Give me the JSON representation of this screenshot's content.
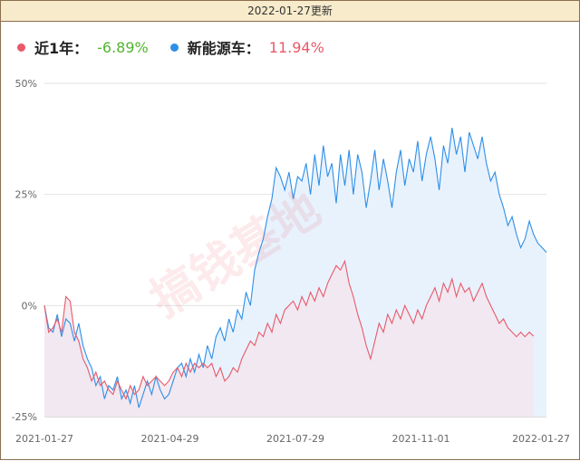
{
  "header": {
    "updated": "2022-01-27更新"
  },
  "legend": [
    {
      "name": "近1年：",
      "value": "-6.89%",
      "value_color": "#52b52f",
      "dot_color": "#e8596a"
    },
    {
      "name": "新能源车：",
      "value": "11.94%",
      "value_color": "#e8596a",
      "dot_color": "#2e8fe8"
    }
  ],
  "watermark": "搞钱基地",
  "chart_data": {
    "type": "area",
    "x_ticks": [
      "2021-01-27",
      "2021-04-29",
      "2021-07-29",
      "2021-11-01",
      "2022-01-27"
    ],
    "y_ticks": [
      "50%",
      "25%",
      "0%",
      "-25%"
    ],
    "ylim": [
      -25,
      50
    ],
    "grid": true,
    "series": [
      {
        "name": "新能源车",
        "color": "#2e8fe8",
        "fill": "#e8f2fd",
        "points": [
          [
            0,
            0
          ],
          [
            1,
            -5
          ],
          [
            2,
            -6
          ],
          [
            3,
            -2
          ],
          [
            4,
            -7
          ],
          [
            5,
            -3
          ],
          [
            6,
            -4
          ],
          [
            7,
            -8
          ],
          [
            8,
            -4
          ],
          [
            9,
            -9
          ],
          [
            10,
            -12
          ],
          [
            11,
            -14
          ],
          [
            12,
            -18
          ],
          [
            13,
            -16
          ],
          [
            14,
            -21
          ],
          [
            15,
            -18
          ],
          [
            16,
            -19
          ],
          [
            17,
            -16
          ],
          [
            18,
            -21
          ],
          [
            19,
            -19
          ],
          [
            20,
            -22
          ],
          [
            21,
            -18
          ],
          [
            22,
            -23
          ],
          [
            23,
            -20
          ],
          [
            24,
            -17
          ],
          [
            25,
            -20
          ],
          [
            26,
            -16
          ],
          [
            27,
            -19
          ],
          [
            28,
            -21
          ],
          [
            29,
            -20
          ],
          [
            30,
            -17
          ],
          [
            31,
            -14
          ],
          [
            32,
            -13
          ],
          [
            33,
            -16
          ],
          [
            34,
            -12
          ],
          [
            35,
            -15
          ],
          [
            36,
            -11
          ],
          [
            37,
            -14
          ],
          [
            38,
            -9
          ],
          [
            39,
            -12
          ],
          [
            40,
            -7
          ],
          [
            41,
            -5
          ],
          [
            42,
            -8
          ],
          [
            43,
            -3
          ],
          [
            44,
            -6
          ],
          [
            45,
            -1
          ],
          [
            46,
            -3
          ],
          [
            47,
            3
          ],
          [
            48,
            0
          ],
          [
            49,
            8
          ],
          [
            50,
            12
          ],
          [
            51,
            15
          ],
          [
            52,
            20
          ],
          [
            53,
            24
          ],
          [
            54,
            31
          ],
          [
            55,
            29
          ],
          [
            56,
            26
          ],
          [
            57,
            30
          ],
          [
            58,
            24
          ],
          [
            59,
            29
          ],
          [
            60,
            28
          ],
          [
            61,
            32
          ],
          [
            62,
            25
          ],
          [
            63,
            34
          ],
          [
            64,
            27
          ],
          [
            65,
            36
          ],
          [
            66,
            29
          ],
          [
            67,
            32
          ],
          [
            68,
            23
          ],
          [
            69,
            34
          ],
          [
            70,
            27
          ],
          [
            71,
            35
          ],
          [
            72,
            25
          ],
          [
            73,
            34
          ],
          [
            74,
            30
          ],
          [
            75,
            22
          ],
          [
            76,
            28
          ],
          [
            77,
            35
          ],
          [
            78,
            26
          ],
          [
            79,
            33
          ],
          [
            80,
            28
          ],
          [
            81,
            22
          ],
          [
            82,
            30
          ],
          [
            83,
            35
          ],
          [
            84,
            27
          ],
          [
            85,
            33
          ],
          [
            86,
            30
          ],
          [
            87,
            37
          ],
          [
            88,
            28
          ],
          [
            89,
            34
          ],
          [
            90,
            38
          ],
          [
            91,
            33
          ],
          [
            92,
            26
          ],
          [
            93,
            36
          ],
          [
            94,
            32
          ],
          [
            95,
            40
          ],
          [
            96,
            34
          ],
          [
            97,
            38
          ],
          [
            98,
            30
          ],
          [
            99,
            39
          ],
          [
            100,
            36
          ],
          [
            101,
            33
          ],
          [
            102,
            38
          ],
          [
            103,
            32
          ],
          [
            104,
            28
          ],
          [
            105,
            30
          ],
          [
            106,
            25
          ],
          [
            107,
            22
          ],
          [
            108,
            18
          ],
          [
            109,
            20
          ],
          [
            110,
            16
          ],
          [
            111,
            13
          ],
          [
            112,
            15
          ],
          [
            113,
            19
          ],
          [
            114,
            16
          ],
          [
            115,
            14
          ],
          [
            116,
            13
          ],
          [
            117,
            11.94
          ]
        ]
      },
      {
        "name": "近1年",
        "color": "#e8596a",
        "fill": "#f3e6ee",
        "points": [
          [
            0,
            0
          ],
          [
            1,
            -6
          ],
          [
            2,
            -5
          ],
          [
            3,
            -3
          ],
          [
            4,
            -6
          ],
          [
            5,
            2
          ],
          [
            6,
            1
          ],
          [
            7,
            -6
          ],
          [
            8,
            -8
          ],
          [
            9,
            -12
          ],
          [
            10,
            -14
          ],
          [
            11,
            -17
          ],
          [
            12,
            -15
          ],
          [
            13,
            -18
          ],
          [
            14,
            -17
          ],
          [
            15,
            -19
          ],
          [
            16,
            -20
          ],
          [
            17,
            -17
          ],
          [
            18,
            -19
          ],
          [
            19,
            -21
          ],
          [
            20,
            -18
          ],
          [
            21,
            -20
          ],
          [
            22,
            -19
          ],
          [
            23,
            -16
          ],
          [
            24,
            -18
          ],
          [
            25,
            -17
          ],
          [
            26,
            -16
          ],
          [
            27,
            -17
          ],
          [
            28,
            -18
          ],
          [
            29,
            -17
          ],
          [
            30,
            -15
          ],
          [
            31,
            -14
          ],
          [
            32,
            -16
          ],
          [
            33,
            -13
          ],
          [
            34,
            -15
          ],
          [
            35,
            -13
          ],
          [
            36,
            -14
          ],
          [
            37,
            -13
          ],
          [
            38,
            -14
          ],
          [
            39,
            -13
          ],
          [
            40,
            -16
          ],
          [
            41,
            -14
          ],
          [
            42,
            -17
          ],
          [
            43,
            -16
          ],
          [
            44,
            -14
          ],
          [
            45,
            -15
          ],
          [
            46,
            -12
          ],
          [
            47,
            -10
          ],
          [
            48,
            -8
          ],
          [
            49,
            -9
          ],
          [
            50,
            -6
          ],
          [
            51,
            -7
          ],
          [
            52,
            -4
          ],
          [
            53,
            -6
          ],
          [
            54,
            -2
          ],
          [
            55,
            -4
          ],
          [
            56,
            -1
          ],
          [
            57,
            0
          ],
          [
            58,
            1
          ],
          [
            59,
            -1
          ],
          [
            60,
            2
          ],
          [
            61,
            0
          ],
          [
            62,
            3
          ],
          [
            63,
            1
          ],
          [
            64,
            4
          ],
          [
            65,
            2
          ],
          [
            66,
            5
          ],
          [
            67,
            7
          ],
          [
            68,
            9
          ],
          [
            69,
            8
          ],
          [
            70,
            10
          ],
          [
            71,
            5
          ],
          [
            72,
            2
          ],
          [
            73,
            -2
          ],
          [
            74,
            -5
          ],
          [
            75,
            -9
          ],
          [
            76,
            -12
          ],
          [
            77,
            -8
          ],
          [
            78,
            -4
          ],
          [
            79,
            -6
          ],
          [
            80,
            -2
          ],
          [
            81,
            -4
          ],
          [
            82,
            -1
          ],
          [
            83,
            -3
          ],
          [
            84,
            0
          ],
          [
            85,
            -2
          ],
          [
            86,
            -4
          ],
          [
            87,
            -1
          ],
          [
            88,
            -3
          ],
          [
            89,
            0
          ],
          [
            90,
            2
          ],
          [
            91,
            4
          ],
          [
            92,
            1
          ],
          [
            93,
            5
          ],
          [
            94,
            3
          ],
          [
            95,
            6
          ],
          [
            96,
            2
          ],
          [
            97,
            5
          ],
          [
            98,
            3
          ],
          [
            99,
            4
          ],
          [
            100,
            1
          ],
          [
            101,
            3
          ],
          [
            102,
            5
          ],
          [
            103,
            2
          ],
          [
            104,
            0
          ],
          [
            105,
            -2
          ],
          [
            106,
            -4
          ],
          [
            107,
            -3
          ],
          [
            108,
            -5
          ],
          [
            109,
            -6
          ],
          [
            110,
            -7
          ],
          [
            111,
            -6
          ],
          [
            112,
            -7
          ],
          [
            113,
            -6
          ],
          [
            114,
            -6.89
          ]
        ]
      }
    ]
  }
}
